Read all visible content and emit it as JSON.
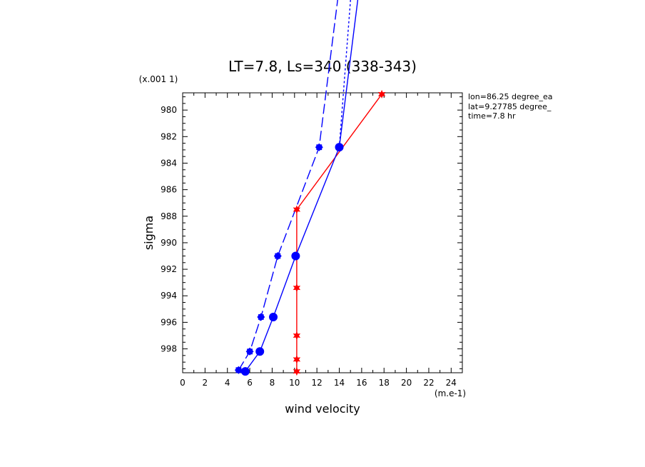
{
  "chart_data": {
    "type": "line",
    "title": "LT=7.8, Ls=340 (338-343)",
    "xlabel": "wind velocity",
    "ylabel": "sigma",
    "x_unit": "(m.e-1)",
    "y_unit": "(x.001 1)",
    "xlim": [
      0,
      25
    ],
    "ylim": [
      999.8,
      978.7
    ],
    "x_ticks": [
      "0",
      "2",
      "4",
      "6",
      "8",
      "10",
      "12",
      "14",
      "16",
      "18",
      "20",
      "22",
      "24"
    ],
    "y_ticks": [
      "980",
      "982",
      "984",
      "986",
      "988",
      "990",
      "992",
      "994",
      "996",
      "998"
    ],
    "annotations": [
      "lon=86.25 degree_ea",
      "lat=9.27785 degree_",
      "time=7.8 hr"
    ],
    "series": [
      {
        "color": "#ff0000",
        "dash": "solid",
        "marker": "star",
        "points": [
          [
            17.8,
            978.8
          ],
          [
            10.2,
            987.5
          ],
          [
            10.2,
            993.4
          ],
          [
            10.2,
            997.0
          ],
          [
            10.2,
            998.8
          ],
          [
            10.2,
            999.7
          ]
        ]
      },
      {
        "color": "#0000ff",
        "dash": "solid",
        "marker": "circle",
        "points": [
          [
            5.6,
            999.7
          ],
          [
            6.9,
            998.2
          ],
          [
            8.1,
            995.6
          ],
          [
            10.1,
            991.0
          ],
          [
            14.0,
            982.8
          ],
          [
            16.8,
            964.0
          ]
        ]
      },
      {
        "color": "#0000ff",
        "dash": "dotted",
        "marker": "none",
        "points": [
          [
            14.0,
            982.8
          ],
          [
            15.7,
            964.0
          ]
        ]
      },
      {
        "color": "#0000ff",
        "dash": "dashed",
        "marker": "gear",
        "points": [
          [
            5.0,
            999.6
          ],
          [
            6.0,
            998.2
          ],
          [
            7.0,
            995.6
          ],
          [
            8.5,
            991.0
          ],
          [
            12.2,
            982.8
          ],
          [
            15.0,
            964.0
          ]
        ]
      }
    ]
  }
}
